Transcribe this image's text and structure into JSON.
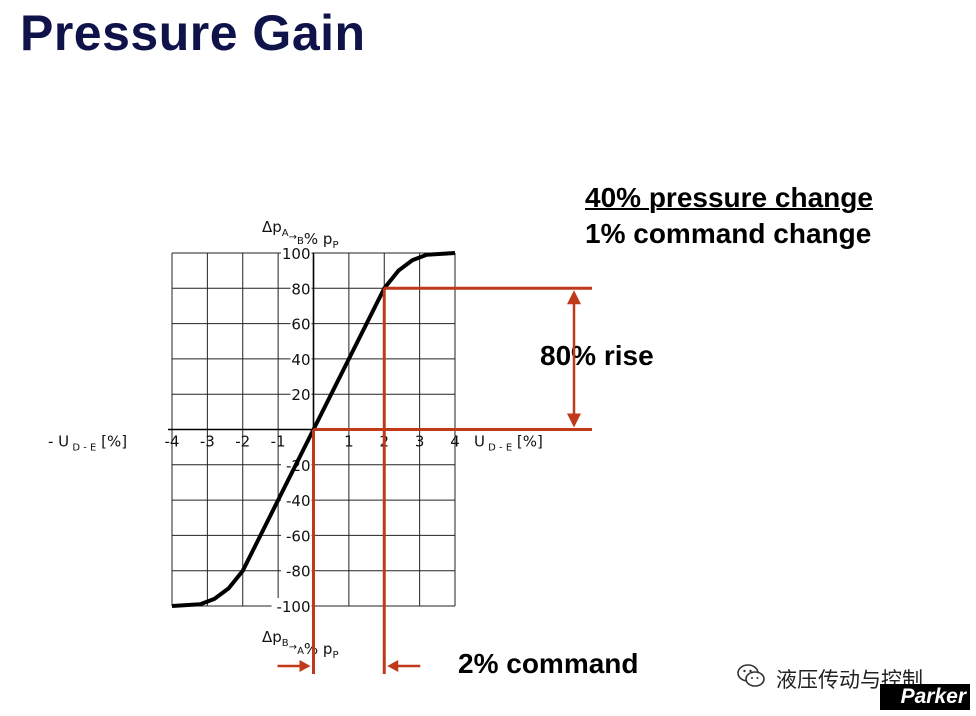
{
  "header": {
    "title": "Pressure Gain"
  },
  "ratio": {
    "numerator": "40% pressure change",
    "denominator": "1% command change"
  },
  "callouts": {
    "rise": "80% rise",
    "command": "2% command"
  },
  "colors": {
    "title": "#10124a",
    "accent": "#c0391b",
    "curve": "#000000",
    "grid": "#222222"
  },
  "chart_data": {
    "type": "line",
    "xlim": [
      -4,
      4
    ],
    "ylim": [
      -100,
      100
    ],
    "x_ticks": [
      -4,
      -3,
      -2,
      -1,
      1,
      2,
      3,
      4
    ],
    "y_ticks": [
      100,
      80,
      60,
      40,
      20,
      -20,
      -40,
      -60,
      -80,
      -100
    ],
    "x_tick_labels": [
      "-4",
      "-3",
      "-2",
      "-1",
      "1",
      "2",
      "3",
      "4"
    ],
    "y_tick_labels": [
      "100",
      "80",
      "60",
      "40",
      "20",
      "-20",
      "-40",
      "-60",
      "-80",
      "-100"
    ],
    "y_label_top": {
      "main": "Δp",
      "s1": "A",
      "arrow": "→",
      "s2": "B",
      "rest": "% p",
      "s3": "P"
    },
    "y_label_bottom": {
      "main": "Δp",
      "s1": "B",
      "arrow": "→",
      "s2": "A",
      "rest": "% p",
      "s3": "P"
    },
    "x_label_left": {
      "main": "- U",
      "sub": "D - E",
      "rest": "[%]"
    },
    "x_label_right": {
      "main": "U",
      "sub": "D - E",
      "rest": "[%]"
    },
    "grid": true,
    "series": [
      {
        "x": [
          -4,
          -3.2,
          -2.8,
          -2.4,
          -2,
          -1,
          0,
          1,
          2,
          2.4,
          2.8,
          3.2,
          4
        ],
        "y": [
          -100,
          -99,
          -96,
          -90,
          -80,
          -40,
          0,
          40,
          80,
          90,
          96,
          99,
          100
        ]
      }
    ],
    "annotations": {
      "rise_from": 0,
      "rise_to": 80,
      "command_from": 0,
      "command_to": 2
    }
  }
}
